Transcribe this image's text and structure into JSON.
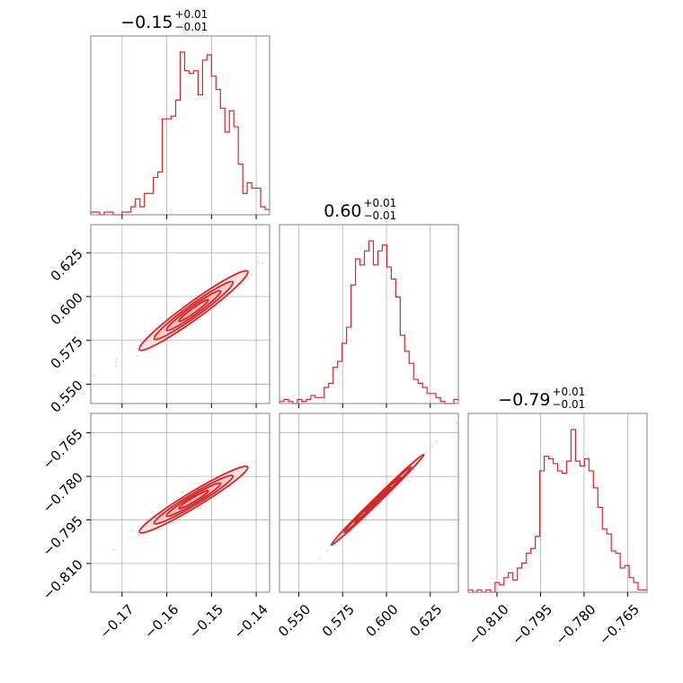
{
  "colors": {
    "accent": "#d62728",
    "grid": "#b0b0b0",
    "frame": "#808080",
    "scatter": "#f4b6b7"
  },
  "chart_data": {
    "type": "corner",
    "parameters": [
      {
        "title": {
          "value": "−0.15",
          "upper": "+0.01",
          "lower": "−0.01"
        },
        "range": [
          -0.177,
          -0.137
        ],
        "ticks": [
          {
            "value": -0.17,
            "label": "−0.17"
          },
          {
            "value": -0.16,
            "label": "−0.16"
          },
          {
            "value": -0.15,
            "label": "−0.15"
          },
          {
            "value": -0.14,
            "label": "−0.14"
          }
        ],
        "hist": {
          "bins": [
            -0.177,
            -0.137
          ],
          "counts": [
            1,
            1,
            0,
            1,
            1,
            0,
            0,
            1,
            1,
            3,
            6,
            3,
            8,
            8,
            14,
            16,
            36,
            36,
            37,
            43,
            61,
            54,
            53,
            54,
            45,
            58,
            60,
            52,
            47,
            40,
            31,
            39,
            33,
            19,
            8,
            12,
            10,
            10,
            3,
            2
          ]
        }
      },
      {
        "title": {
          "value": "0.60",
          "upper": "+0.01",
          "lower": "−0.01"
        },
        "range": [
          0.539,
          0.641
        ],
        "ticks": [
          {
            "value": 0.55,
            "label": "0.550"
          },
          {
            "value": 0.575,
            "label": "0.575"
          },
          {
            "value": 0.6,
            "label": "0.600"
          },
          {
            "value": 0.625,
            "label": "0.625"
          }
        ],
        "hist": {
          "bins": [
            0.539,
            0.641
          ],
          "counts": [
            1,
            2,
            1,
            0,
            2,
            1,
            2,
            4,
            3,
            3,
            8,
            10,
            18,
            21,
            30,
            38,
            59,
            72,
            69,
            76,
            81,
            69,
            76,
            79,
            68,
            62,
            53,
            34,
            26,
            20,
            12,
            10,
            8,
            5,
            5,
            3,
            1,
            0,
            0,
            2
          ]
        }
      },
      {
        "title": {
          "value": "−0.79",
          "upper": "+0.01",
          "lower": "−0.01"
        },
        "range": [
          -0.8199,
          -0.7583
        ],
        "ticks": [
          {
            "value": -0.81,
            "label": "−0.810"
          },
          {
            "value": -0.795,
            "label": "−0.795"
          },
          {
            "value": -0.78,
            "label": "−0.780"
          },
          {
            "value": -0.765,
            "label": "−0.765"
          }
        ],
        "hist": {
          "bins": [
            -0.8199,
            -0.7583
          ],
          "counts": [
            1,
            0,
            1,
            0,
            1,
            0,
            4,
            3,
            6,
            8,
            5,
            10,
            12,
            16,
            18,
            23,
            50,
            56,
            55,
            53,
            50,
            49,
            54,
            67,
            54,
            52,
            55,
            50,
            43,
            35,
            26,
            24,
            17,
            16,
            10,
            11,
            6,
            4,
            1,
            1
          ]
        }
      }
    ],
    "pairs": [
      {
        "x_param": 0,
        "y_param": 1,
        "slope": 1.85,
        "x_center": -0.154,
        "y_center": 0.592,
        "spread_x": 0.0055,
        "spread_y": 0.0022
      },
      {
        "x_param": 0,
        "y_param": 2,
        "slope": 0.93,
        "x_center": -0.154,
        "y_center": -0.788,
        "spread_x": 0.0055,
        "spread_y": 0.0012
      },
      {
        "x_param": 1,
        "y_param": 2,
        "slope": 0.59,
        "x_center": 0.595,
        "y_center": -0.788,
        "spread_x": 0.012,
        "spread_y": 0.0004
      }
    ]
  }
}
